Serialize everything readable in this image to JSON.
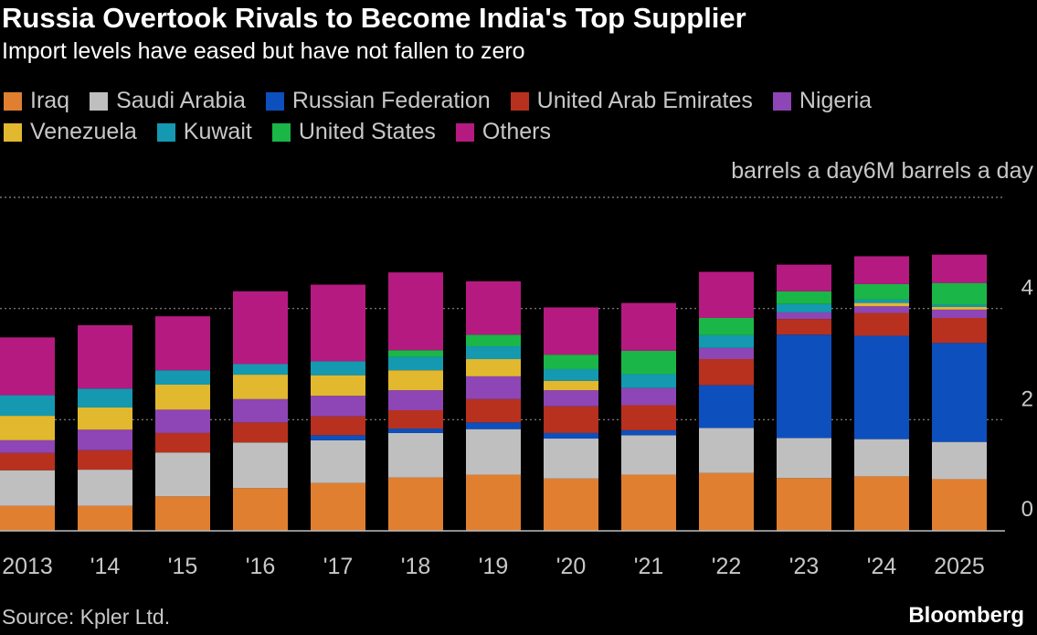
{
  "title": "Russia Overtook Rivals to Become India's Top Supplier",
  "subtitle": "Import levels have eased but have not fallen to zero",
  "unit_label": "barrels a day",
  "unit_top_label": "6M barrels a day",
  "source": "Source: Kpler Ltd.",
  "brand": "Bloomberg",
  "chart_data": {
    "type": "bar",
    "stacked": true,
    "categories": [
      "2013",
      "'14",
      "'15",
      "'16",
      "'17",
      "'18",
      "'19",
      "'20",
      "'21",
      "'22",
      "'23",
      "'24",
      "2025"
    ],
    "ylim": [
      0,
      6
    ],
    "yticks": [
      "0",
      "2",
      "4"
    ],
    "grid": true,
    "legend_position": "top",
    "series": [
      {
        "name": "Iraq",
        "color": "#e07f30",
        "values": [
          0.45,
          0.45,
          0.62,
          0.77,
          0.86,
          0.96,
          1.01,
          0.94,
          1.01,
          1.04,
          0.95,
          0.98,
          0.93
        ]
      },
      {
        "name": "Saudi Arabia",
        "color": "#bfbfbf",
        "values": [
          0.64,
          0.65,
          0.79,
          0.82,
          0.77,
          0.8,
          0.82,
          0.72,
          0.71,
          0.81,
          0.72,
          0.67,
          0.67
        ]
      },
      {
        "name": "Russian Federation",
        "color": "#0d4fbd",
        "values": [
          0.0,
          0.0,
          0.0,
          0.0,
          0.09,
          0.08,
          0.12,
          0.1,
          0.09,
          0.77,
          1.86,
          1.86,
          1.78
        ]
      },
      {
        "name": "United Arab Emirates",
        "color": "#b7311e",
        "values": [
          0.31,
          0.35,
          0.35,
          0.36,
          0.34,
          0.33,
          0.42,
          0.48,
          0.45,
          0.47,
          0.28,
          0.41,
          0.45
        ]
      },
      {
        "name": "Nigeria",
        "color": "#8e45b5",
        "values": [
          0.23,
          0.37,
          0.42,
          0.42,
          0.37,
          0.36,
          0.41,
          0.29,
          0.31,
          0.2,
          0.12,
          0.12,
          0.15
        ]
      },
      {
        "name": "Venezuela",
        "color": "#e2b82f",
        "values": [
          0.44,
          0.4,
          0.45,
          0.44,
          0.37,
          0.36,
          0.31,
          0.17,
          0.0,
          0.0,
          0.0,
          0.06,
          0.05
        ]
      },
      {
        "name": "Kuwait",
        "color": "#1499b1",
        "values": [
          0.37,
          0.34,
          0.26,
          0.19,
          0.25,
          0.24,
          0.23,
          0.21,
          0.25,
          0.23,
          0.15,
          0.06,
          0.04
        ]
      },
      {
        "name": "United States",
        "color": "#1bb648",
        "values": [
          0.0,
          0.0,
          0.0,
          0.0,
          0.0,
          0.12,
          0.21,
          0.26,
          0.42,
          0.31,
          0.23,
          0.28,
          0.39
        ]
      },
      {
        "name": "Others",
        "color": "#b51a80",
        "values": [
          1.04,
          1.14,
          0.97,
          1.31,
          1.38,
          1.4,
          0.96,
          0.85,
          0.86,
          0.83,
          0.48,
          0.5,
          0.51
        ]
      }
    ]
  }
}
